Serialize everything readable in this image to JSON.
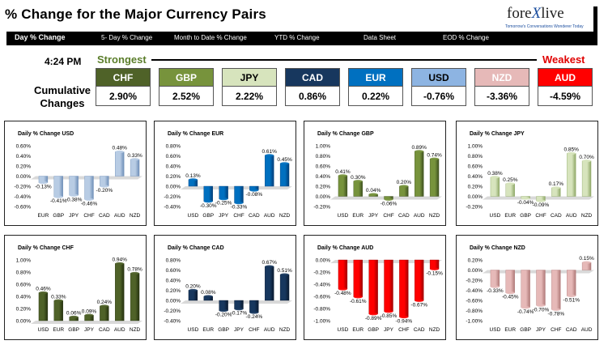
{
  "header": {
    "title": "% Change for the Major Currency Pairs",
    "logo_main": "fore",
    "logo_x": "X",
    "logo_tail": "live",
    "logo_sub": "Tomorrow's Conversations Wonderer Today"
  },
  "nav": {
    "items": [
      "Day % Change",
      "5- Day % Change",
      "Month to Date % Change",
      "YTD % Change",
      "Data Sheet",
      "EOD % Change"
    ]
  },
  "summary": {
    "time": "4:24 PM",
    "strongest_label": "Strongest",
    "weakest_label": "Weakest",
    "cumulative_label_1": "Cumulative",
    "cumulative_label_2": "Changes",
    "currencies": [
      {
        "code": "CHF",
        "value": "2.90%",
        "color": "#4f6228",
        "text_color": "#ffffff"
      },
      {
        "code": "GBP",
        "value": "2.52%",
        "color": "#77933c",
        "text_color": "#ffffff"
      },
      {
        "code": "JPY",
        "value": "2.22%",
        "color": "#d7e4bd",
        "text_color": "#000000"
      },
      {
        "code": "CAD",
        "value": "0.86%",
        "color": "#17375e",
        "text_color": "#ffffff"
      },
      {
        "code": "EUR",
        "value": "0.22%",
        "color": "#0070c0",
        "text_color": "#ffffff"
      },
      {
        "code": "USD",
        "value": "-0.76%",
        "color": "#8db4e2",
        "text_color": "#000000"
      },
      {
        "code": "NZD",
        "value": "-3.36%",
        "color": "#e6b9b8",
        "text_color": "#ffffff"
      },
      {
        "code": "AUD",
        "value": "-4.59%",
        "color": "#ff0000",
        "text_color": "#ffffff"
      }
    ]
  },
  "chart_data": [
    {
      "type": "bar",
      "title": "Daily % Change USD",
      "categories": [
        "EUR",
        "GBP",
        "JPY",
        "CHF",
        "CAD",
        "AUD",
        "NZD"
      ],
      "values": [
        -0.13,
        -0.41,
        -0.38,
        -0.46,
        -0.2,
        0.48,
        0.33
      ],
      "value_labels": [
        "-0.13%",
        "-0.41%",
        "-0.38%",
        "-0.46%",
        "-0.20%",
        "0.48%",
        "0.33%"
      ],
      "ylim": [
        -0.6,
        0.6
      ],
      "yticks": [
        0.6,
        0.4,
        0.2,
        0,
        -0.2,
        -0.4,
        -0.6
      ],
      "ytick_labels": [
        "0.60%",
        "0.40%",
        "0.20%",
        "0.00%",
        "-0.20%",
        "-0.40%",
        "-0.60%"
      ],
      "color": "#b8cce4",
      "color_dark": "#6f8fb8"
    },
    {
      "type": "bar",
      "title": "Daily % Change EUR",
      "categories": [
        "USD",
        "GBP",
        "JPY",
        "CHF",
        "CAD",
        "AUD",
        "NZD"
      ],
      "values": [
        0.13,
        -0.3,
        -0.25,
        -0.33,
        -0.08,
        0.61,
        0.45
      ],
      "value_labels": [
        "0.13%",
        "-0.30%",
        "-0.25%",
        "-0.33%",
        "-0.08%",
        "0.61%",
        "0.45%"
      ],
      "ylim": [
        -0.4,
        0.8
      ],
      "yticks": [
        0.8,
        0.6,
        0.4,
        0.2,
        0,
        -0.2,
        -0.4
      ],
      "ytick_labels": [
        "0.80%",
        "0.60%",
        "0.40%",
        "0.20%",
        "0.00%",
        "-0.20%",
        "-0.40%"
      ],
      "color": "#0070c0",
      "color_dark": "#003f7a"
    },
    {
      "type": "bar",
      "title": "Daily % Change GBP",
      "categories": [
        "USD",
        "EUR",
        "JPY",
        "CHF",
        "CAD",
        "AUD",
        "NZD"
      ],
      "values": [
        0.41,
        0.3,
        0.04,
        -0.06,
        0.2,
        0.89,
        0.74
      ],
      "value_labels": [
        "0.41%",
        "0.30%",
        "0.04%",
        "-0.06%",
        "0.20%",
        "0.89%",
        "0.74%"
      ],
      "ylim": [
        -0.2,
        1.0
      ],
      "yticks": [
        1.0,
        0.8,
        0.6,
        0.4,
        0.2,
        0,
        -0.2
      ],
      "ytick_labels": [
        "1.00%",
        "0.80%",
        "0.60%",
        "0.40%",
        "0.20%",
        "0.00%",
        "-0.20%"
      ],
      "color": "#77933c",
      "color_dark": "#3f5220"
    },
    {
      "type": "bar",
      "title": "Daily % Change JPY",
      "categories": [
        "USD",
        "EUR",
        "GBP",
        "CHF",
        "CAD",
        "AUD",
        "NZD"
      ],
      "values": [
        0.38,
        0.25,
        -0.04,
        -0.09,
        0.17,
        0.85,
        0.7
      ],
      "value_labels": [
        "0.38%",
        "0.25%",
        "-0.04%",
        "-0.09%",
        "0.17%",
        "0.85%",
        "0.70%"
      ],
      "ylim": [
        -0.2,
        1.0
      ],
      "yticks": [
        1.0,
        0.8,
        0.6,
        0.4,
        0.2,
        0,
        -0.2
      ],
      "ytick_labels": [
        "1.00%",
        "0.80%",
        "0.60%",
        "0.40%",
        "0.20%",
        "0.00%",
        "-0.20%"
      ],
      "color": "#d7e4bd",
      "color_dark": "#8fa868"
    },
    {
      "type": "bar",
      "title": "Daily % Change CHF",
      "categories": [
        "USD",
        "EUR",
        "GBP",
        "JPY",
        "CAD",
        "AUD",
        "NZD"
      ],
      "values": [
        0.46,
        0.33,
        0.06,
        0.09,
        0.24,
        0.94,
        0.78
      ],
      "value_labels": [
        "0.46%",
        "0.33%",
        "0.06%",
        "0.09%",
        "0.24%",
        "0.94%",
        "0.78%"
      ],
      "ylim": [
        0,
        1.0
      ],
      "yticks": [
        1.0,
        0.8,
        0.6,
        0.4,
        0.2,
        0
      ],
      "ytick_labels": [
        "1.00%",
        "0.80%",
        "0.60%",
        "0.40%",
        "0.20%",
        "0.00%"
      ],
      "color": "#4f6228",
      "color_dark": "#26320f"
    },
    {
      "type": "bar",
      "title": "Daily % Change CAD",
      "categories": [
        "USD",
        "EUR",
        "GBP",
        "JPY",
        "CHF",
        "AUD",
        "NZD"
      ],
      "values": [
        0.2,
        0.08,
        -0.2,
        -0.17,
        -0.24,
        0.67,
        0.51
      ],
      "value_labels": [
        "0.20%",
        "0.08%",
        "-0.20%",
        "-0.17%",
        "-0.24%",
        "0.67%",
        "0.51%"
      ],
      "ylim": [
        -0.4,
        0.8
      ],
      "yticks": [
        0.8,
        0.6,
        0.4,
        0.2,
        0,
        -0.2,
        -0.4
      ],
      "ytick_labels": [
        "0.80%",
        "0.60%",
        "0.40%",
        "0.20%",
        "0.00%",
        "-0.20%",
        "-0.40%"
      ],
      "color": "#17375e",
      "color_dark": "#0a1a30"
    },
    {
      "type": "bar",
      "title": "Daily % Change AUD",
      "categories": [
        "USD",
        "EUR",
        "GBP",
        "JPY",
        "CHF",
        "CAD",
        "NZD"
      ],
      "values": [
        -0.48,
        -0.61,
        -0.89,
        -0.85,
        -0.94,
        -0.67,
        -0.15
      ],
      "value_labels": [
        "-0.48%",
        "-0.61%",
        "-0.89%",
        "-0.85%",
        "-0.94%",
        "-0.67%",
        "-0.15%"
      ],
      "ylim": [
        -1.0,
        0
      ],
      "yticks": [
        0,
        -0.2,
        -0.4,
        -0.6,
        -0.8,
        -1.0
      ],
      "ytick_labels": [
        "0.00%",
        "-0.20%",
        "-0.40%",
        "-0.60%",
        "-0.80%",
        "-1.00%"
      ],
      "color": "#ff0000",
      "color_dark": "#a00000"
    },
    {
      "type": "bar",
      "title": "Daily % Change NZD",
      "categories": [
        "USD",
        "EUR",
        "GBP",
        "JPY",
        "CHF",
        "CAD",
        "AUD"
      ],
      "values": [
        -0.33,
        -0.45,
        -0.74,
        -0.7,
        -0.78,
        -0.51,
        0.15
      ],
      "value_labels": [
        "-0.33%",
        "-0.45%",
        "-0.74%",
        "-0.70%",
        "-0.78%",
        "-0.51%",
        "0.15%"
      ],
      "ylim": [
        -1.0,
        0.2
      ],
      "yticks": [
        0.2,
        0,
        -0.2,
        -0.4,
        -0.6,
        -0.8,
        -1.0
      ],
      "ytick_labels": [
        "0.20%",
        "0.00%",
        "-0.20%",
        "-0.40%",
        "-0.60%",
        "-0.80%",
        "-1.00%"
      ],
      "color": "#e6b9b8",
      "color_dark": "#b07a79"
    }
  ]
}
